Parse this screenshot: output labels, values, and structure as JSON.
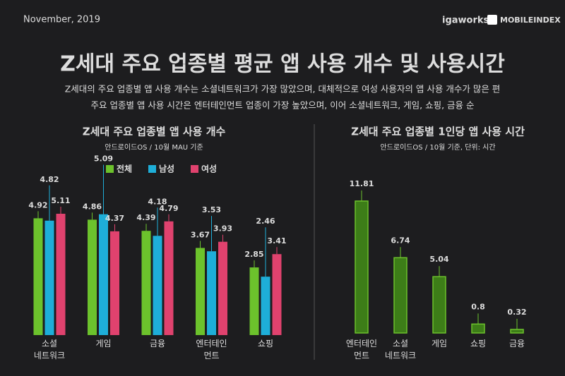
{
  "header": {
    "date": "November, 2019",
    "logos": [
      "igaworks",
      "MOBILEINDEX"
    ],
    "title": "Z세대 주요 업종별 평균 앱 사용 개수 및 사용시간",
    "subtitle": [
      "Z세대의 주요 업종별 앱 사용 개수는 소셜네트워크가 가장 많았으며, 대체적으로 여성 사용자의 앱 사용 개수가 많은 편",
      "주요 업종별 앱 사용 시간은 엔터테인먼트 업종이 가장 높았으며, 이어 소셜네트워크, 게임, 쇼핑, 금융 순"
    ]
  },
  "chart_data": [
    {
      "type": "grouped-bar",
      "title": "Z세대 주요 업종별 앱 사용 개수",
      "subtitle": "안드로이드OS / 10월 MAU 기준",
      "categories": [
        "소셜\n네트워크",
        "게임",
        "금융",
        "엔터테인\n먼트",
        "쇼핑"
      ],
      "series": [
        {
          "name": "전체",
          "color": "#6cc22c",
          "values": [
            4.92,
            4.86,
            4.39,
            3.67,
            2.85
          ]
        },
        {
          "name": "남성",
          "color": "#1eaed8",
          "values": [
            4.82,
            5.09,
            4.18,
            3.53,
            2.46
          ]
        },
        {
          "name": "여성",
          "color": "#e0426e",
          "values": [
            5.11,
            4.37,
            4.79,
            3.93,
            3.41
          ]
        }
      ]
    },
    {
      "type": "bar",
      "title": "Z세대 주요 업종별 1인당 앱 사용 시간",
      "subtitle": "안드로이드OS / 10월 기준, 단위: 시간",
      "categories": [
        "엔터테인\n먼트",
        "소셜\n네트워크",
        "게임",
        "쇼핑",
        "금융"
      ],
      "values": [
        11.81,
        6.74,
        5.04,
        0.8,
        0.32
      ],
      "color": "#6cc22c"
    }
  ]
}
